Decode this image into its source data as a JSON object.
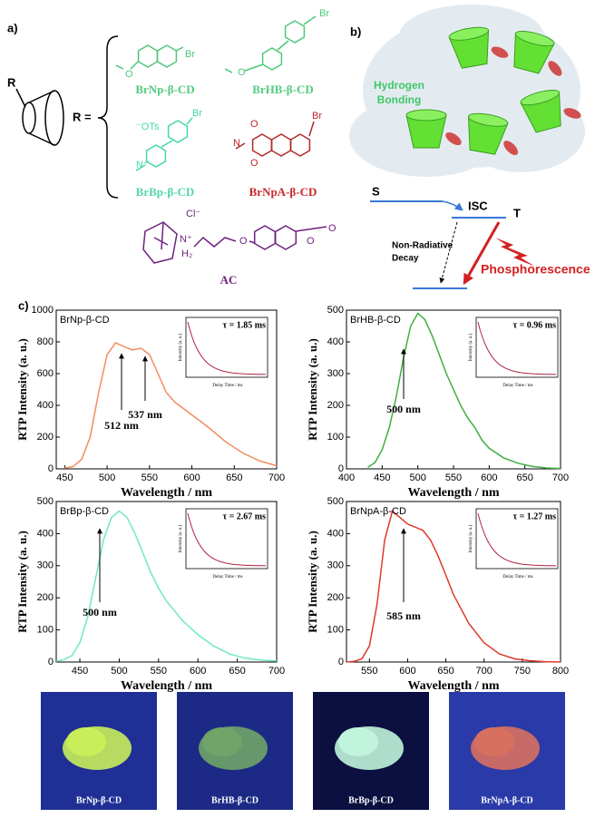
{
  "panel_a": {
    "label": "a)",
    "r_label": "R",
    "r_equals": "R =",
    "compounds": [
      {
        "name": "BrNp-β-CD",
        "atoms": [
          "Br",
          "O"
        ]
      },
      {
        "name": "BrHB-β-CD",
        "atoms": [
          "Br",
          "O"
        ]
      },
      {
        "name": "BrBp-β-CD",
        "atoms": [
          "⁻OTs",
          "Br",
          "N⁺"
        ]
      },
      {
        "name": "BrNpA-β-CD",
        "atoms": [
          "O",
          "N",
          "O",
          "Br"
        ]
      }
    ],
    "guest": {
      "name": "AC",
      "atoms": [
        "Cl⁻",
        "N⁺",
        "H₂",
        "O",
        "O",
        "O"
      ]
    }
  },
  "panel_b": {
    "label": "b)",
    "hydrogen_bonding": [
      "Hydrogen",
      "Bonding"
    ],
    "s": "S",
    "isc": "ISC",
    "t": "T",
    "non_radiative": [
      "Non-Radiative",
      "Decay"
    ],
    "phosphorescence": "Phosphorescence"
  },
  "panel_c": {
    "label": "c)"
  },
  "chart_data": [
    {
      "type": "line",
      "xlabel": "Wavelength / nm",
      "ylabel": "RTP Intensity (a. u.)",
      "x": [
        450,
        460,
        470,
        480,
        490,
        500,
        510,
        520,
        530,
        540,
        550,
        560,
        570,
        580,
        590,
        600,
        620,
        640,
        660,
        680,
        700
      ],
      "series": [
        {
          "name": "BrNp-β-CD",
          "color": "#f28c5e",
          "values": [
            5,
            15,
            60,
            200,
            480,
            720,
            795,
            770,
            750,
            760,
            720,
            600,
            480,
            420,
            380,
            340,
            260,
            170,
            100,
            50,
            20
          ]
        }
      ],
      "xlim": [
        440,
        700
      ],
      "ylim": [
        0,
        1000
      ],
      "xticks": [
        450,
        500,
        550,
        600,
        650,
        700
      ],
      "yticks": [
        0,
        200,
        400,
        600,
        800,
        1000
      ],
      "annotations": [
        "512 nm",
        "537 nm"
      ],
      "inset": {
        "tau": "τ = 1.85 ms",
        "ylabel": "Intensity (a. u.)",
        "xlabel": "Delay Time / ms"
      }
    },
    {
      "type": "line",
      "xlabel": "Wavelength / nm",
      "ylabel": "RTP Intensity (a. u.)",
      "x": [
        430,
        440,
        450,
        460,
        470,
        480,
        490,
        500,
        510,
        520,
        530,
        540,
        550,
        560,
        570,
        580,
        590,
        600,
        620,
        640,
        660,
        680,
        700
      ],
      "series": [
        {
          "name": "BrHB-β-CD",
          "color": "#3fae3f",
          "values": [
            5,
            20,
            60,
            130,
            230,
            350,
            450,
            490,
            470,
            420,
            360,
            300,
            250,
            200,
            160,
            130,
            90,
            65,
            35,
            18,
            8,
            3,
            1
          ]
        }
      ],
      "xlim": [
        400,
        700
      ],
      "ylim": [
        0,
        500
      ],
      "xticks": [
        400,
        450,
        500,
        550,
        600,
        650,
        700
      ],
      "yticks": [
        0,
        100,
        200,
        300,
        400,
        500
      ],
      "annotations": [
        "500 nm"
      ],
      "inset": {
        "tau": "τ = 0.96 ms",
        "ylabel": "Intensity (a. u.)",
        "xlabel": "Delay Time / ms"
      }
    },
    {
      "type": "line",
      "xlabel": "Wavelength / nm",
      "ylabel": "RTP Intensity (a. u.)",
      "x": [
        420,
        430,
        440,
        450,
        460,
        470,
        480,
        490,
        500,
        510,
        520,
        530,
        540,
        550,
        560,
        570,
        580,
        600,
        620,
        640,
        660,
        680,
        700
      ],
      "series": [
        {
          "name": "BrBp-β-CD",
          "color": "#6ee8c8",
          "values": [
            2,
            8,
            20,
            60,
            140,
            260,
            380,
            450,
            470,
            450,
            400,
            340,
            280,
            230,
            190,
            160,
            130,
            85,
            50,
            25,
            12,
            6,
            3
          ]
        }
      ],
      "xlim": [
        420,
        700
      ],
      "ylim": [
        0,
        500
      ],
      "xticks": [
        450,
        500,
        550,
        600,
        650,
        700
      ],
      "yticks": [
        0,
        100,
        200,
        300,
        400,
        500
      ],
      "annotations": [
        "500 nm"
      ],
      "inset": {
        "tau": "τ = 2.67 ms",
        "ylabel": "Intensity (a. u.)",
        "xlabel": "Delay Time / ms"
      }
    },
    {
      "type": "line",
      "xlabel": "Wavelength / nm",
      "ylabel": "RTP Intensity (a. u.)",
      "x": [
        520,
        530,
        540,
        550,
        560,
        570,
        580,
        590,
        600,
        610,
        620,
        630,
        640,
        650,
        660,
        680,
        700,
        720,
        740,
        760,
        780,
        800
      ],
      "series": [
        {
          "name": "BrNpA-β-CD",
          "color": "#e03a2c",
          "values": [
            0,
            2,
            10,
            50,
            180,
            380,
            470,
            450,
            430,
            420,
            410,
            380,
            330,
            270,
            210,
            120,
            60,
            25,
            10,
            4,
            1,
            0
          ]
        }
      ],
      "xlim": [
        520,
        800
      ],
      "ylim": [
        0,
        500
      ],
      "xticks": [
        550,
        600,
        650,
        700,
        750,
        800
      ],
      "yticks": [
        0,
        100,
        200,
        300,
        400,
        500
      ],
      "annotations": [
        "585 nm"
      ],
      "inset": {
        "tau": "τ = 1.27 ms",
        "ylabel": "Intensity (a. u.)",
        "xlabel": "Delay Time / ms"
      }
    }
  ],
  "photos": {
    "captions": [
      "BrNp-β-CD",
      "BrHB-β-CD",
      "BrBp-β-CD",
      "BrNpA-β-CD"
    ]
  }
}
